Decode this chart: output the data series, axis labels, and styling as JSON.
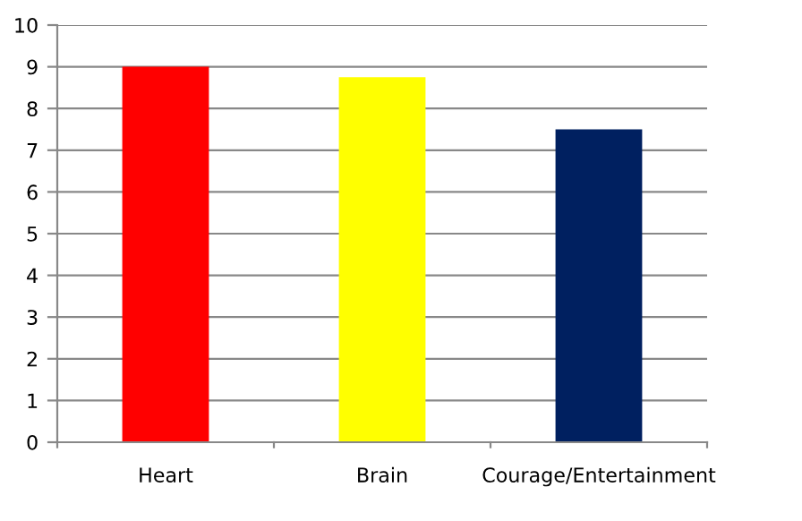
{
  "chart_data": {
    "type": "bar",
    "categories": [
      "Heart",
      "Brain",
      "Courage/Entertainment"
    ],
    "values": [
      9,
      8.75,
      7.5
    ],
    "colors": [
      "#ff0000",
      "#ffff00",
      "#002060"
    ],
    "ylim": [
      0,
      10
    ],
    "yticks": [
      0,
      1,
      2,
      3,
      4,
      5,
      6,
      7,
      8,
      9,
      10
    ],
    "grid": "y",
    "legend": false
  }
}
